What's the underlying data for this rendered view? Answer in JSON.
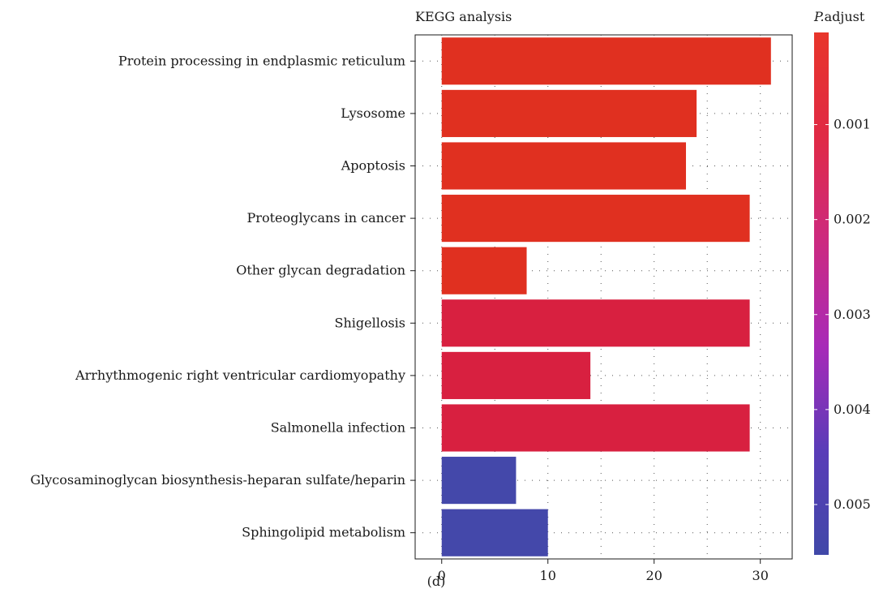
{
  "caption": "(d)",
  "chart_data": {
    "type": "bar",
    "orientation": "horizontal",
    "title": "KEGG analysis",
    "xlabel": "",
    "ylabel": "",
    "xlim": [
      -2.5,
      33
    ],
    "xticks": [
      0,
      10,
      20,
      30
    ],
    "grid": true,
    "categories": [
      "Protein processing in endplasmic reticulum",
      "Lysosome",
      "Apoptosis",
      "Proteoglycans in cancer",
      "Other glycan degradation",
      "Shigellosis",
      "Arrhythmogenic right ventricular cardiomyopathy",
      "Salmonella infection",
      "Glycosaminoglycan biosynthesis-heparan sulfate/heparin",
      "Sphingolipid metabolism"
    ],
    "values": [
      31,
      24,
      23,
      29,
      8,
      29,
      14,
      29,
      7,
      10
    ],
    "colors": [
      "#e03020",
      "#e03020",
      "#e03020",
      "#e03020",
      "#e03020",
      "#d82040",
      "#d82040",
      "#d82040",
      "#4448aa",
      "#4448aa"
    ],
    "legend": {
      "title_italic": "P.",
      "title_rest": "adjust",
      "placement": "right",
      "ticks": [
        "0.001",
        "0.002",
        "0.003",
        "0.004",
        "0.005"
      ],
      "tick_values": [
        0.001,
        0.002,
        0.003,
        0.004,
        0.005
      ],
      "range": [
        3e-05,
        0.00553
      ],
      "gradient": [
        "#e8352a",
        "#e02a45",
        "#cc2a80",
        "#a82ab8",
        "#5a3cb8",
        "#4048a8"
      ]
    }
  }
}
